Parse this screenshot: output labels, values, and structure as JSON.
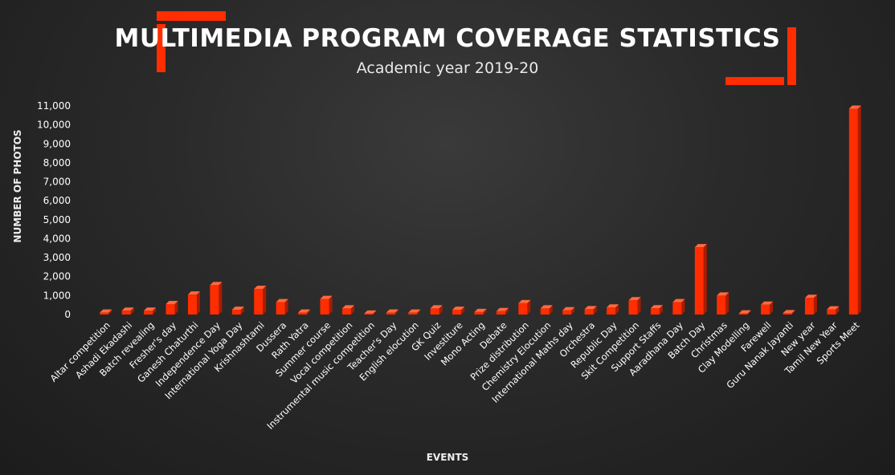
{
  "chart_data": {
    "type": "bar",
    "title": "MULTIMEDIA PROGRAM COVERAGE STATISTICS",
    "subtitle": "Academic year 2019-20",
    "xlabel": "EVENTS",
    "ylabel": "NUMBER OF PHOTOS",
    "ylim": [
      0,
      11000
    ],
    "yticks": [
      0,
      1000,
      2000,
      3000,
      4000,
      5000,
      6000,
      7000,
      8000,
      9000,
      10000,
      11000
    ],
    "ytick_labels": [
      "0",
      "1,000",
      "2,000",
      "3,000",
      "4,000",
      "5,000",
      "6,000",
      "7,000",
      "8,000",
      "9,000",
      "10,000",
      "11,000"
    ],
    "grid": false,
    "bar_color": "#ff2d00",
    "categories": [
      "Altar competition",
      "Ashadi Ekadashi",
      "Batch revealing",
      "Fresher's day",
      "Ganesh Chaturthi",
      "Independence Day",
      "International Yoga Day",
      "Krishnashtami",
      "Dussera",
      "Rath Yatra",
      "Summer course",
      "Vocal competition",
      "Instrumental music competition",
      "Teacher's Day",
      "English elocution",
      "GK Quiz",
      "Investiture",
      "Mono Acting",
      "Debate",
      "Prize distribution",
      "Chemistry Elocution",
      "International Maths day",
      "Orchestra",
      "Republic Day",
      "Skit Competition",
      "Support Staffs",
      "Aaradhana Day",
      "Batch Day",
      "Christmas",
      "Clay Modelling",
      "Farewell",
      "Guru Nanak Jayanti",
      "New year",
      "Tamil New Year",
      "Sports Meet"
    ],
    "values": [
      100,
      200,
      200,
      550,
      1050,
      1550,
      250,
      1350,
      650,
      100,
      820,
      320,
      50,
      100,
      100,
      320,
      250,
      130,
      180,
      600,
      320,
      220,
      280,
      370,
      750,
      330,
      650,
      3550,
      1000,
      60,
      520,
      70,
      880,
      270,
      10850
    ]
  },
  "colors": {
    "accent": "#ff2d00",
    "background": "#2a2a2a",
    "text": "#ffffff"
  }
}
